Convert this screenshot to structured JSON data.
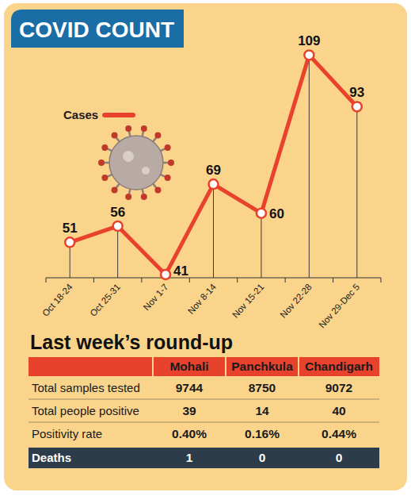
{
  "chart_data": {
    "type": "line",
    "title": "COVID COUNT",
    "categories": [
      "Oct 18-24",
      "Oct 25-31",
      "Nov 1-7",
      "Nov 8-14",
      "Nov 15-21",
      "Nov 22-28",
      "Nov 29-Dec 5"
    ],
    "series": [
      {
        "name": "Cases",
        "color": "#e8412c",
        "marker": "circle",
        "values": [
          51,
          56,
          41,
          69,
          60,
          109,
          93
        ]
      }
    ],
    "ylim": [
      40,
      115
    ],
    "data_labels": true,
    "tick_labels": "x",
    "legend": "upper left"
  },
  "table": {
    "title": "Last week’s round-up",
    "columns": [
      "Mohali",
      "Panchkula",
      "Chandigarh"
    ],
    "rows": [
      {
        "label": "Total samples tested",
        "values": [
          9744,
          8750,
          9072
        ]
      },
      {
        "label": "Total people positive",
        "values": [
          39,
          14,
          40
        ]
      },
      {
        "label": "Positivity rate",
        "values": [
          "0.40%",
          "0.16%",
          "0.44%"
        ]
      },
      {
        "label": "Deaths",
        "values": [
          1,
          0,
          0
        ]
      }
    ]
  }
}
